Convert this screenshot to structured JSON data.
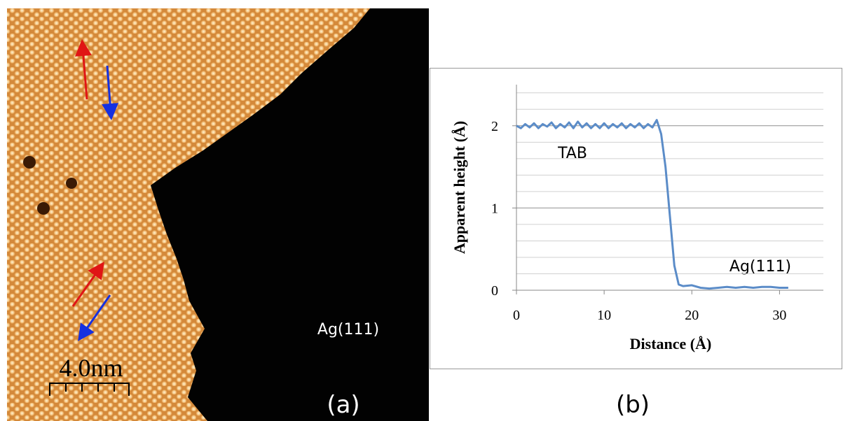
{
  "panel_a": {
    "substrate_label": "Ag(111)",
    "scale_bar": "4.0nm",
    "label": "(a)"
  },
  "chart_data": {
    "type": "line",
    "panel_label": "(b)",
    "x_label": "Distance (Å)",
    "y_label": "Apparent height (Å)",
    "annotations": [
      "TAB",
      "Ag(111)"
    ],
    "color": "#5b8cc8",
    "x": [
      0,
      0.5,
      1,
      1.5,
      2,
      2.5,
      3,
      3.5,
      4,
      4.5,
      5,
      5.5,
      6,
      6.5,
      7,
      7.5,
      8,
      8.5,
      9,
      9.5,
      10,
      10.5,
      11,
      11.5,
      12,
      12.5,
      13,
      13.5,
      14,
      14.5,
      15,
      15.5,
      16,
      16.5,
      17,
      17.5,
      18,
      18.5,
      19,
      20,
      21,
      22,
      23,
      24,
      25,
      26,
      27,
      28,
      29,
      30,
      31
    ],
    "values": [
      2.0,
      1.97,
      2.02,
      1.98,
      2.03,
      1.97,
      2.02,
      1.99,
      2.04,
      1.97,
      2.02,
      1.98,
      2.04,
      1.97,
      2.05,
      1.98,
      2.03,
      1.97,
      2.02,
      1.97,
      2.03,
      1.97,
      2.02,
      1.98,
      2.03,
      1.97,
      2.02,
      1.98,
      2.03,
      1.97,
      2.02,
      1.98,
      2.07,
      1.9,
      1.5,
      0.9,
      0.3,
      0.07,
      0.05,
      0.06,
      0.03,
      0.02,
      0.03,
      0.04,
      0.03,
      0.04,
      0.03,
      0.04,
      0.04,
      0.03,
      0.03
    ],
    "xlim": [
      0,
      35
    ],
    "xticks": [
      0,
      10,
      20,
      30
    ],
    "ylim": [
      0,
      2.5
    ],
    "yticks": [
      0,
      1,
      2
    ],
    "ygrid": [
      0.2,
      0.4,
      0.6,
      0.8,
      1,
      1.2,
      1.4,
      1.6,
      1.8,
      2,
      2.2,
      2.4
    ],
    "grid": true
  }
}
